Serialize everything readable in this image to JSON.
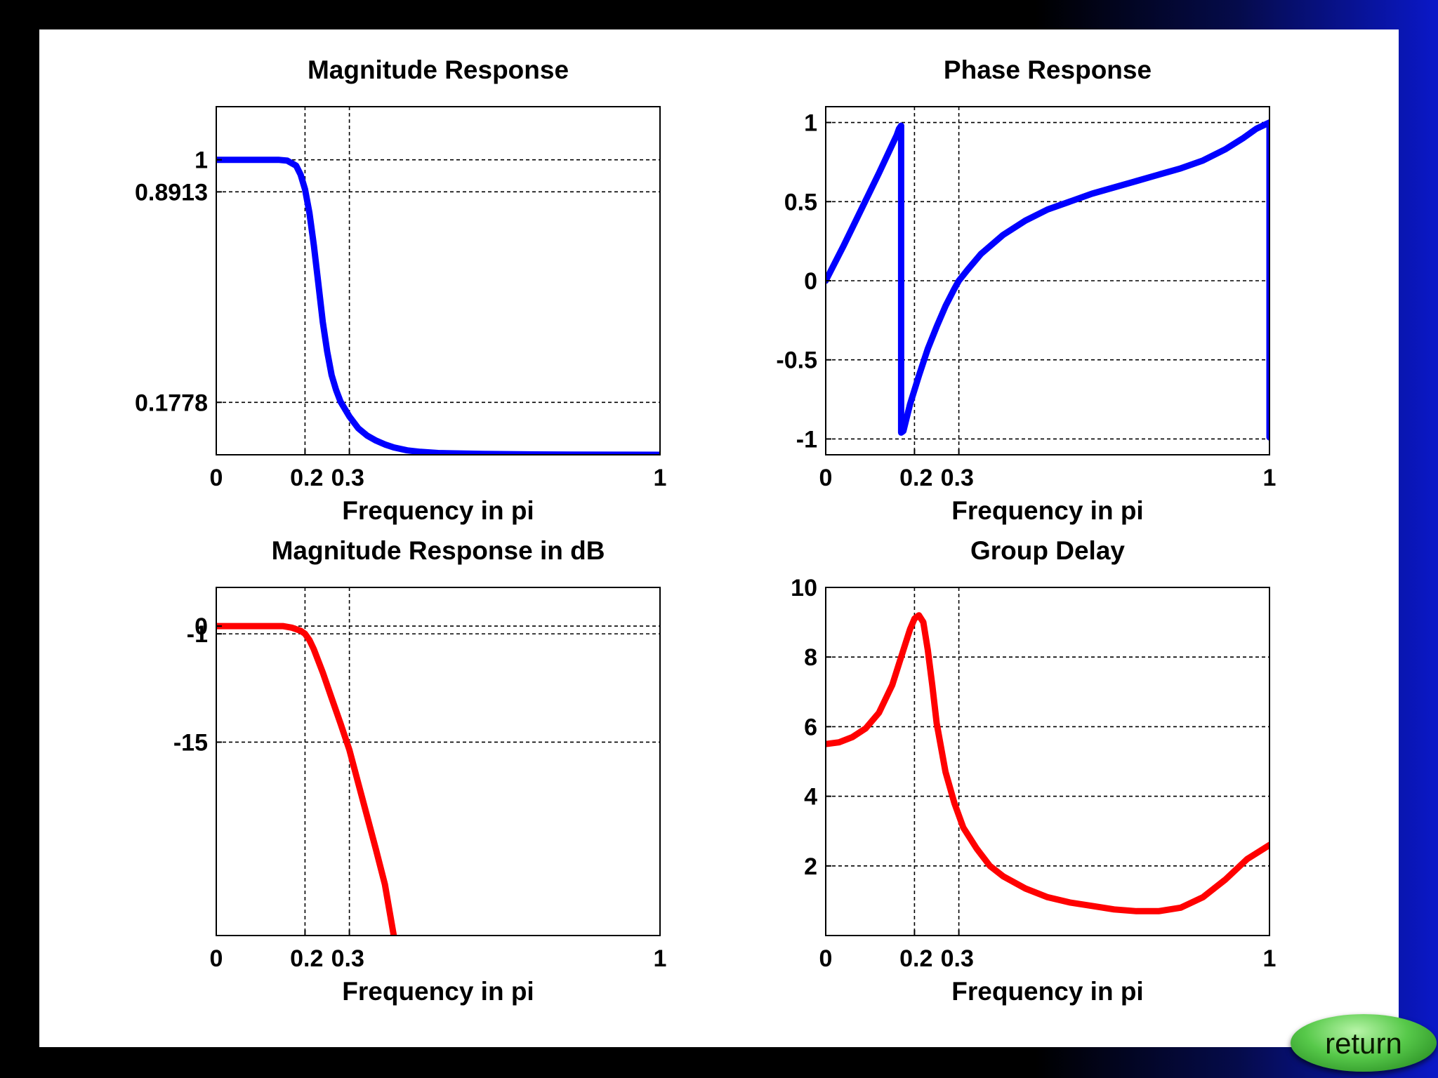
{
  "chart_data": [
    {
      "type": "line",
      "title": "Magnitude Response",
      "xlabel": "Frequency in pi",
      "ylabel": "",
      "xlim": [
        0,
        1
      ],
      "ylim": [
        0,
        1.18
      ],
      "xticks": [
        0,
        0.2,
        0.3,
        1
      ],
      "xtick_labels": [
        "0",
        "0.2",
        "0.3",
        "1"
      ],
      "yticks": [
        0.1778,
        0.8913,
        1
      ],
      "ytick_labels": [
        "0.1778",
        "0.8913",
        "1"
      ],
      "grid": true,
      "color": "#0000ff",
      "series": [
        {
          "x": [
            0,
            0.05,
            0.1,
            0.14,
            0.16,
            0.18,
            0.19,
            0.2,
            0.21,
            0.22,
            0.23,
            0.24,
            0.25,
            0.26,
            0.27,
            0.28,
            0.3,
            0.32,
            0.34,
            0.36,
            0.38,
            0.4,
            0.43,
            0.46,
            0.5,
            0.6,
            0.7,
            0.8,
            0.9,
            1
          ],
          "y": [
            1,
            1,
            1,
            1,
            0.997,
            0.98,
            0.95,
            0.9,
            0.82,
            0.71,
            0.58,
            0.45,
            0.35,
            0.27,
            0.22,
            0.18,
            0.13,
            0.09,
            0.065,
            0.048,
            0.035,
            0.025,
            0.015,
            0.01,
            0.006,
            0.003,
            0.0015,
            0.0008,
            0.0003,
            0
          ]
        }
      ]
    },
    {
      "type": "line",
      "title": "Phase Response",
      "xlabel": "Frequency in pi",
      "ylabel": "",
      "xlim": [
        0,
        1
      ],
      "ylim": [
        -1.1,
        1.1
      ],
      "xticks": [
        0,
        0.2,
        0.3,
        1
      ],
      "xtick_labels": [
        "0",
        "0.2",
        "0.3",
        "1"
      ],
      "yticks": [
        -1,
        -0.5,
        0,
        0.5,
        1
      ],
      "ytick_labels": [
        "-1",
        "-0.5",
        "0",
        "0.5",
        "1"
      ],
      "grid": true,
      "color": "#0000ff",
      "series": [
        {
          "x": [
            0,
            0.04,
            0.08,
            0.12,
            0.16,
            0.165,
            0.17,
            0.17,
            0.175,
            0.19,
            0.21,
            0.23,
            0.25,
            0.27,
            0.29,
            0.3,
            0.32,
            0.35,
            0.4,
            0.45,
            0.5,
            0.55,
            0.6,
            0.65,
            0.7,
            0.75,
            0.8,
            0.85,
            0.9,
            0.94,
            0.97,
            1,
            1
          ],
          "y": [
            0,
            0.22,
            0.45,
            0.68,
            0.92,
            0.96,
            0.98,
            -0.96,
            -0.95,
            -0.78,
            -0.6,
            -0.43,
            -0.29,
            -0.16,
            -0.05,
            0,
            0.07,
            0.17,
            0.29,
            0.38,
            0.45,
            0.5,
            0.55,
            0.59,
            0.63,
            0.67,
            0.71,
            0.76,
            0.83,
            0.9,
            0.96,
            1,
            -0.99
          ]
        }
      ]
    },
    {
      "type": "line",
      "title": "Magnitude Response in dB",
      "xlabel": "Frequency in pi",
      "ylabel": "",
      "xlim": [
        0,
        1
      ],
      "ylim": [
        -40,
        5
      ],
      "xticks": [
        0,
        0.2,
        0.3,
        1
      ],
      "xtick_labels": [
        "0",
        "0.2",
        "0.3",
        "1"
      ],
      "yticks": [
        -15,
        -1,
        0
      ],
      "ytick_labels": [
        "-15",
        "-1",
        "0"
      ],
      "grid": true,
      "color": "#ff0000",
      "series": [
        {
          "x": [
            0,
            0.05,
            0.1,
            0.15,
            0.17,
            0.19,
            0.2,
            0.21,
            0.22,
            0.24,
            0.26,
            0.28,
            0.3,
            0.32,
            0.34,
            0.36,
            0.38,
            0.4
          ],
          "y": [
            0,
            0,
            0,
            0,
            -0.2,
            -0.6,
            -1,
            -1.8,
            -3,
            -6,
            -9.3,
            -12.6,
            -16,
            -20.3,
            -24.6,
            -28.9,
            -33.4,
            -40
          ]
        }
      ]
    },
    {
      "type": "line",
      "title": "Group Delay",
      "xlabel": "Frequency in pi",
      "ylabel": "",
      "xlim": [
        0,
        1
      ],
      "ylim": [
        0,
        10
      ],
      "xticks": [
        0,
        0.2,
        0.3,
        1
      ],
      "xtick_labels": [
        "0",
        "0.2",
        "0.3",
        "1"
      ],
      "yticks": [
        2,
        4,
        6,
        8,
        10
      ],
      "ytick_labels": [
        "2",
        "4",
        "6",
        "8",
        "10"
      ],
      "grid": true,
      "color": "#ff0000",
      "series": [
        {
          "x": [
            0,
            0.03,
            0.06,
            0.09,
            0.12,
            0.15,
            0.17,
            0.19,
            0.2,
            0.21,
            0.22,
            0.23,
            0.24,
            0.25,
            0.27,
            0.29,
            0.31,
            0.34,
            0.37,
            0.4,
            0.45,
            0.5,
            0.55,
            0.6,
            0.65,
            0.7,
            0.75,
            0.8,
            0.85,
            0.9,
            0.95,
            1
          ],
          "y": [
            5.5,
            5.55,
            5.7,
            5.95,
            6.4,
            7.2,
            8,
            8.8,
            9.1,
            9.2,
            9.0,
            8.2,
            7.2,
            6.1,
            4.7,
            3.8,
            3.1,
            2.5,
            2.0,
            1.7,
            1.35,
            1.1,
            0.95,
            0.85,
            0.75,
            0.7,
            0.7,
            0.8,
            1.1,
            1.6,
            2.2,
            2.6
          ]
        }
      ]
    }
  ],
  "button": {
    "return_label": "return"
  }
}
